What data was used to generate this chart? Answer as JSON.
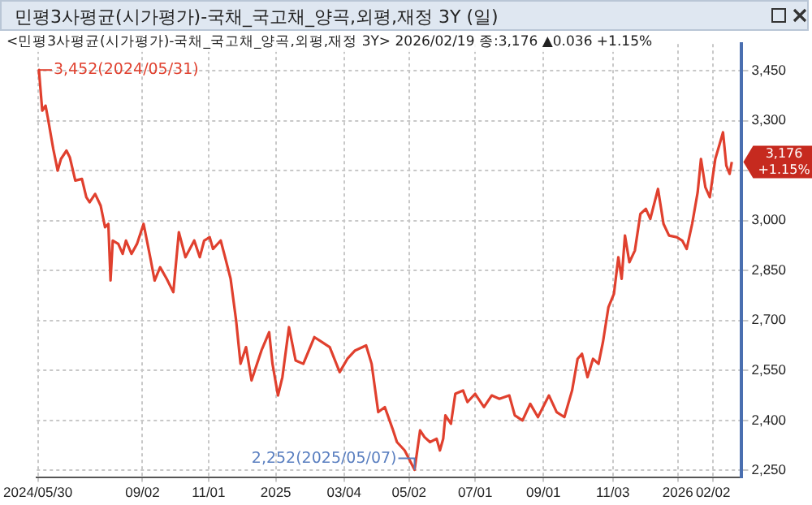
{
  "chart_data": {
    "type": "line",
    "title": "민평3사평균(시가평가)-국채_국고채_양곡,외평,재정 3Y (일)",
    "subtitle": "<민평3사평균(시가평가)-국채_국고채_양곡,외평,재정 3Y> 2026/02/19 종:3,176 ▲0.036 +1.15%",
    "x": [
      "2024-05-30",
      "2024-05-31",
      "2024-06-01",
      "2024-06-03",
      "2024-06-06",
      "2024-06-08",
      "2024-06-13",
      "2024-06-17",
      "2024-06-20",
      "2024-06-25",
      "2024-06-28",
      "2024-07-03",
      "2024-07-09",
      "2024-07-13",
      "2024-07-16",
      "2024-07-21",
      "2024-07-26",
      "2024-07-30",
      "2024-08-02",
      "2024-08-04",
      "2024-08-06",
      "2024-08-11",
      "2024-08-15",
      "2024-08-18",
      "2024-08-23",
      "2024-08-28",
      "2024-09-03",
      "2024-09-09",
      "2024-09-13",
      "2024-09-18",
      "2024-09-24",
      "2024-09-30",
      "2024-10-05",
      "2024-10-11",
      "2024-10-19",
      "2024-10-24",
      "2024-10-28",
      "2024-11-02",
      "2024-11-05",
      "2024-11-12",
      "2024-11-16",
      "2024-11-21",
      "2024-11-26",
      "2024-11-30",
      "2024-12-05",
      "2024-12-10",
      "2024-12-15",
      "2024-12-19",
      "2024-12-26",
      "2024-12-29",
      "2025-01-03",
      "2025-01-07",
      "2025-01-13",
      "2025-01-19",
      "2025-01-26",
      "2025-02-05",
      "2025-02-12",
      "2025-02-19",
      "2025-02-28",
      "2025-03-07",
      "2025-03-14",
      "2025-03-24",
      "2025-03-29",
      "2025-04-04",
      "2025-04-10",
      "2025-04-17",
      "2025-04-21",
      "2025-04-28",
      "2025-05-07",
      "2025-05-12",
      "2025-05-16",
      "2025-05-21",
      "2025-05-27",
      "2025-05-30",
      "2025-06-02",
      "2025-06-04",
      "2025-06-09",
      "2025-06-13",
      "2025-06-20",
      "2025-06-24",
      "2025-07-01",
      "2025-07-09",
      "2025-07-16",
      "2025-07-23",
      "2025-08-01",
      "2025-08-06",
      "2025-08-13",
      "2025-08-20",
      "2025-08-27",
      "2025-09-06",
      "2025-09-13",
      "2025-09-20",
      "2025-09-27",
      "2025-10-02",
      "2025-10-06",
      "2025-10-11",
      "2025-10-16",
      "2025-10-21",
      "2025-10-25",
      "2025-10-30",
      "2025-11-04",
      "2025-11-08",
      "2025-11-11",
      "2025-11-14",
      "2025-11-18",
      "2025-11-23",
      "2025-11-28",
      "2025-12-03",
      "2025-12-07",
      "2025-12-14",
      "2025-12-19",
      "2025-12-24",
      "2025-12-31",
      "2026-01-05",
      "2026-01-09",
      "2026-01-14",
      "2026-01-19",
      "2026-01-22",
      "2026-01-26",
      "2026-01-30",
      "2026-02-04",
      "2026-02-08",
      "2026-02-11",
      "2026-02-14",
      "2026-02-17",
      "2026-02-19"
    ],
    "values": [
      3440,
      3452,
      3410,
      3330,
      3345,
      3310,
      3215,
      3150,
      3185,
      3210,
      3190,
      3120,
      3125,
      3070,
      3055,
      3080,
      3045,
      2980,
      2990,
      2820,
      2940,
      2930,
      2900,
      2940,
      2900,
      2930,
      2990,
      2890,
      2820,
      2860,
      2825,
      2785,
      2965,
      2890,
      2940,
      2890,
      2940,
      2950,
      2915,
      2940,
      2890,
      2825,
      2700,
      2570,
      2620,
      2520,
      2570,
      2610,
      2665,
      2570,
      2475,
      2530,
      2680,
      2580,
      2570,
      2650,
      2635,
      2620,
      2545,
      2585,
      2610,
      2625,
      2570,
      2425,
      2440,
      2375,
      2335,
      2310,
      2252,
      2370,
      2350,
      2335,
      2345,
      2310,
      2345,
      2415,
      2390,
      2480,
      2490,
      2455,
      2480,
      2440,
      2475,
      2465,
      2475,
      2415,
      2400,
      2450,
      2410,
      2475,
      2425,
      2410,
      2490,
      2585,
      2600,
      2530,
      2585,
      2570,
      2635,
      2740,
      2780,
      2890,
      2825,
      2955,
      2875,
      2910,
      3020,
      3035,
      3005,
      3095,
      2990,
      2955,
      2950,
      2940,
      2915,
      2990,
      3085,
      3185,
      3100,
      3070,
      3185,
      3230,
      3265,
      3165,
      3140,
      3176
    ],
    "color": "#e0402e",
    "marker": "none",
    "line_style": "solid",
    "grid": true,
    "xlim": [
      "2024-05-29",
      "2026-02-28"
    ],
    "xticks": [
      {
        "value": "2024-05-30",
        "label": "2024/05/30"
      },
      {
        "value": "2024-09-02",
        "label": "09/02"
      },
      {
        "value": "2024-11-01",
        "label": "11/01"
      },
      {
        "value": "2025-01-01",
        "label": "2025"
      },
      {
        "value": "2025-03-04",
        "label": "03/04"
      },
      {
        "value": "2025-05-02",
        "label": "05/02"
      },
      {
        "value": "2025-07-01",
        "label": "07/01"
      },
      {
        "value": "2025-09-01",
        "label": "09/01"
      },
      {
        "value": "2025-11-03",
        "label": "11/03"
      },
      {
        "value": "2026-01-01",
        "label": "2026"
      },
      {
        "value": "2026-02-02",
        "label": "02/02"
      }
    ],
    "ylim": [
      2230,
      3530
    ],
    "yticks": [
      {
        "value": 2250,
        "label": "2,250"
      },
      {
        "value": 2400,
        "label": "2,400"
      },
      {
        "value": 2550,
        "label": "2,550"
      },
      {
        "value": 2700,
        "label": "2,700"
      },
      {
        "value": 2850,
        "label": "2,850"
      },
      {
        "value": 3000,
        "label": "3,000"
      },
      {
        "value": 3150,
        "label": null
      },
      {
        "value": 3300,
        "label": "3,300"
      },
      {
        "value": 3450,
        "label": "3,450"
      }
    ],
    "annotations": [
      {
        "text": "3,452(2024/05/31)",
        "x": "2024-05-31",
        "y": 3452
      },
      {
        "text": "2,252(2025/05/07)",
        "x": "2025-05-07",
        "y": 2252
      },
      {
        "text": "3,176 +1.15%",
        "x": "2026-02-19",
        "y": 3176
      }
    ]
  }
}
